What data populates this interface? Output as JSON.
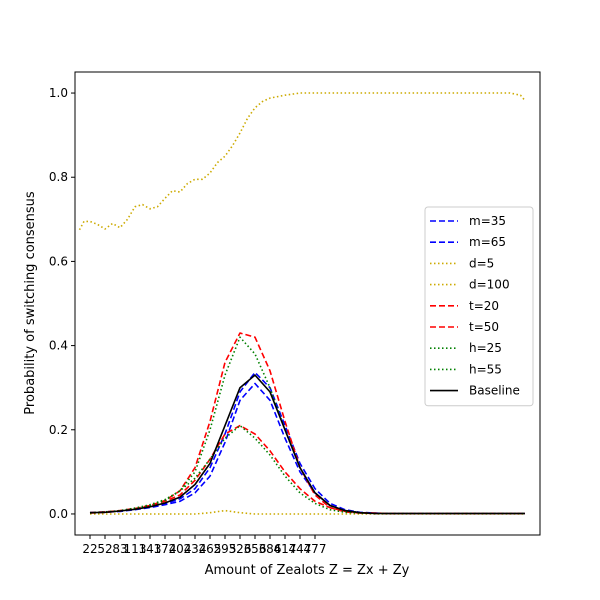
{
  "chart_data": {
    "type": "line",
    "title": "",
    "xlabel": "Amount of Zealots Z = Zx + Zy",
    "ylabel": "Probability of switching consensus",
    "xlim": [
      0,
      31
    ],
    "ylim": [
      -0.05,
      1.05
    ],
    "x_tick_labels": [
      "22",
      "52",
      "83",
      "113",
      "143",
      "174",
      "204",
      "234",
      "265",
      "295",
      "326",
      "356",
      "386",
      "417",
      "447",
      "477"
    ],
    "y_ticks": [
      0.0,
      0.2,
      0.4,
      0.6,
      0.8,
      1.0
    ],
    "y_tick_labels": [
      "0.0",
      "0.2",
      "0.4",
      "0.6",
      "0.8",
      "1.0"
    ],
    "legend_position": "center-right",
    "grid": false,
    "series": [
      {
        "name": "m=35",
        "color": "#0000ff",
        "dash": "dashed",
        "x": [
          1,
          2,
          3,
          4,
          5,
          6,
          7,
          8,
          9,
          10,
          11,
          12,
          13,
          14,
          15,
          16,
          17,
          18,
          19,
          20,
          21,
          22,
          23,
          24,
          25,
          26,
          27,
          28,
          29,
          30
        ],
        "values": [
          0.003,
          0.004,
          0.006,
          0.01,
          0.015,
          0.022,
          0.03,
          0.05,
          0.09,
          0.17,
          0.27,
          0.31,
          0.27,
          0.18,
          0.1,
          0.05,
          0.02,
          0.008,
          0.003,
          0.002,
          0.001,
          0.001,
          0.001,
          0.001,
          0.001,
          0.001,
          0.001,
          0.001,
          0.001,
          0.001
        ]
      },
      {
        "name": "m=65",
        "color": "#0000ff",
        "dash": "dashed",
        "x": [
          1,
          2,
          3,
          4,
          5,
          6,
          7,
          8,
          9,
          10,
          11,
          12,
          13,
          14,
          15,
          16,
          17,
          18,
          19,
          20,
          21,
          22,
          23,
          24,
          25,
          26,
          27,
          28,
          29,
          30
        ],
        "values": [
          0.003,
          0.005,
          0.007,
          0.011,
          0.016,
          0.024,
          0.036,
          0.06,
          0.11,
          0.19,
          0.29,
          0.336,
          0.3,
          0.21,
          0.12,
          0.06,
          0.025,
          0.01,
          0.004,
          0.002,
          0.001,
          0.001,
          0.001,
          0.001,
          0.001,
          0.001,
          0.001,
          0.001,
          0.001,
          0.001
        ]
      },
      {
        "name": "d=5",
        "color": "#ccaa00",
        "dash": "dotted",
        "x": [
          1,
          2,
          3,
          4,
          5,
          6,
          7,
          8,
          9,
          10,
          11,
          12,
          13,
          14,
          15,
          16,
          17,
          18,
          19,
          20,
          21,
          22,
          23,
          24,
          25,
          26,
          27,
          28,
          29,
          30
        ],
        "values": [
          0,
          0,
          0,
          0,
          0,
          0,
          0,
          0,
          0.003,
          0.008,
          0.003,
          0,
          0,
          0,
          0,
          0,
          0,
          0,
          0,
          0,
          0,
          0,
          0,
          0,
          0,
          0,
          0,
          0,
          0,
          0
        ]
      },
      {
        "name": "d=100",
        "color": "#ccaa00",
        "dash": "dotted",
        "x": [
          0.3,
          0.6,
          1,
          1.5,
          2,
          2.5,
          3,
          3.5,
          4,
          4.5,
          5,
          5.5,
          6,
          6.5,
          7,
          7.5,
          8,
          8.5,
          9,
          9.5,
          10,
          10.5,
          11,
          11.5,
          12,
          12.5,
          13,
          14,
          15,
          16,
          17,
          18,
          19,
          20,
          21,
          22,
          23,
          24,
          25,
          26,
          27,
          28,
          29,
          29.7,
          30
        ],
        "values": [
          0.675,
          0.695,
          0.695,
          0.688,
          0.677,
          0.69,
          0.68,
          0.7,
          0.73,
          0.735,
          0.725,
          0.73,
          0.75,
          0.768,
          0.765,
          0.785,
          0.795,
          0.795,
          0.81,
          0.835,
          0.85,
          0.875,
          0.905,
          0.94,
          0.965,
          0.98,
          0.988,
          0.995,
          1.0,
          1.0,
          1.0,
          1.0,
          1.0,
          1.0,
          1.0,
          1.0,
          1.0,
          1.0,
          1.0,
          1.0,
          1.0,
          1.0,
          1.0,
          0.995,
          0.982
        ]
      },
      {
        "name": "t=20",
        "color": "#ff0000",
        "dash": "dashed",
        "x": [
          1,
          2,
          3,
          4,
          5,
          6,
          7,
          8,
          9,
          10,
          11,
          12,
          13,
          14,
          15,
          16,
          17,
          18,
          19,
          20,
          21,
          22,
          23,
          24,
          25,
          26,
          27,
          28,
          29,
          30
        ],
        "values": [
          0.003,
          0.005,
          0.008,
          0.013,
          0.02,
          0.03,
          0.045,
          0.08,
          0.13,
          0.19,
          0.21,
          0.19,
          0.15,
          0.1,
          0.06,
          0.03,
          0.015,
          0.006,
          0.003,
          0.002,
          0.001,
          0.001,
          0.001,
          0.001,
          0.001,
          0.001,
          0.001,
          0.001,
          0.001,
          0.001
        ]
      },
      {
        "name": "t=50",
        "color": "#ff0000",
        "dash": "dashed",
        "x": [
          1,
          2,
          3,
          4,
          5,
          6,
          7,
          8,
          9,
          10,
          11,
          12,
          13,
          14,
          15,
          16,
          17,
          18,
          19,
          20,
          21,
          22,
          23,
          24,
          25,
          26,
          27,
          28,
          29,
          30
        ],
        "values": [
          0.002,
          0.004,
          0.007,
          0.012,
          0.02,
          0.032,
          0.055,
          0.11,
          0.22,
          0.36,
          0.43,
          0.42,
          0.34,
          0.22,
          0.11,
          0.045,
          0.015,
          0.005,
          0.002,
          0.001,
          0.001,
          0.001,
          0.001,
          0.001,
          0.001,
          0.001,
          0.001,
          0.001,
          0.001,
          0.001
        ]
      },
      {
        "name": "h=25",
        "color": "#008000",
        "dash": "dotted",
        "x": [
          1,
          2,
          3,
          4,
          5,
          6,
          7,
          8,
          9,
          10,
          11,
          12,
          13,
          14,
          15,
          16,
          17,
          18,
          19,
          20,
          21,
          22,
          23,
          24,
          25,
          26,
          27,
          28,
          29,
          30
        ],
        "values": [
          0.003,
          0.005,
          0.008,
          0.014,
          0.022,
          0.034,
          0.055,
          0.085,
          0.13,
          0.18,
          0.21,
          0.18,
          0.14,
          0.09,
          0.05,
          0.025,
          0.01,
          0.004,
          0.002,
          0.001,
          0.001,
          0.001,
          0.001,
          0.001,
          0.001,
          0.001,
          0.001,
          0.001,
          0.001,
          0.001
        ]
      },
      {
        "name": "h=55",
        "color": "#008000",
        "dash": "dotted",
        "x": [
          1,
          2,
          3,
          4,
          5,
          6,
          7,
          8,
          9,
          10,
          11,
          12,
          13,
          14,
          15,
          16,
          17,
          18,
          19,
          20,
          21,
          22,
          23,
          24,
          25,
          26,
          27,
          28,
          29,
          30
        ],
        "values": [
          0.002,
          0.004,
          0.007,
          0.012,
          0.02,
          0.032,
          0.055,
          0.1,
          0.2,
          0.33,
          0.42,
          0.38,
          0.3,
          0.2,
          0.11,
          0.05,
          0.02,
          0.008,
          0.003,
          0.001,
          0.001,
          0.001,
          0.001,
          0.001,
          0.001,
          0.001,
          0.001,
          0.001,
          0.001,
          0.001
        ]
      },
      {
        "name": "Baseline",
        "color": "#000000",
        "dash": "solid",
        "x": [
          1,
          2,
          3,
          4,
          5,
          6,
          7,
          8,
          9,
          10,
          11,
          12,
          13,
          14,
          15,
          16,
          17,
          18,
          19,
          20,
          21,
          22,
          23,
          24,
          25,
          26,
          27,
          28,
          29,
          30
        ],
        "values": [
          0.003,
          0.004,
          0.007,
          0.011,
          0.017,
          0.026,
          0.04,
          0.07,
          0.12,
          0.21,
          0.3,
          0.33,
          0.29,
          0.2,
          0.11,
          0.05,
          0.02,
          0.008,
          0.003,
          0.001,
          0.001,
          0.001,
          0.001,
          0.001,
          0.001,
          0.001,
          0.001,
          0.001,
          0.001,
          0.001
        ]
      }
    ]
  }
}
